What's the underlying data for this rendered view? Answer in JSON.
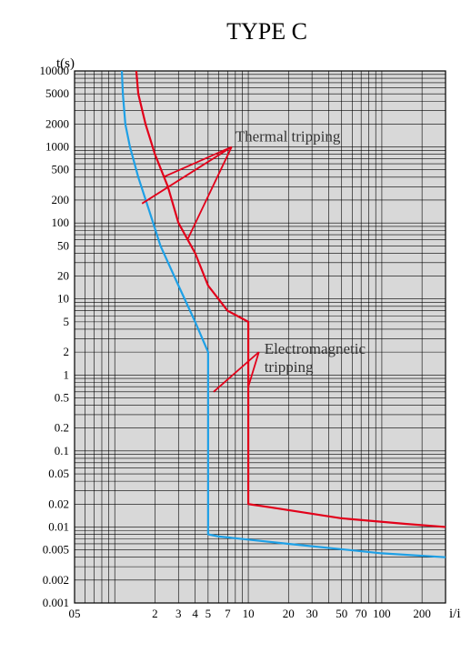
{
  "title": "TYPE C",
  "y_axis_label": "t(s)",
  "x_axis_label": "i/in",
  "annotations": {
    "thermal": "Thermal tripping",
    "electro": "Electromagnetic",
    "electro2": "tripping"
  },
  "colors": {
    "plot_bg": "#d8d8d8",
    "grid": "#000000",
    "blue_curve": "#1ea0e6",
    "red_curve": "#e2001a",
    "text": "#000000",
    "annotation": "#333333"
  },
  "x_ticks": [
    0.5,
    1,
    2,
    3,
    4,
    5,
    7,
    10,
    20,
    30,
    50,
    70,
    100,
    200
  ],
  "x_tick_labels": [
    "05",
    "",
    "2",
    "3",
    "4",
    "5",
    "7",
    "10",
    "20",
    "30",
    "50",
    "70",
    "100",
    "200"
  ],
  "y_ticks": [
    0.001,
    0.002,
    0.005,
    0.01,
    0.02,
    0.05,
    0.1,
    0.2,
    0.5,
    1,
    2,
    5,
    10,
    20,
    50,
    100,
    200,
    500,
    1000,
    2000,
    5000,
    10000
  ],
  "y_tick_labels": [
    "0.001",
    "0.002",
    "0.005",
    "0.01",
    "0.02",
    "0.05",
    "0.1",
    "0.2",
    "0.5",
    "1",
    "2",
    "5",
    "10",
    "20",
    "50",
    "100",
    "200",
    "500",
    "1000",
    "2000",
    "5000",
    "10000"
  ],
  "x_range": [
    0.5,
    300
  ],
  "y_range": [
    0.001,
    10000
  ],
  "blue_curve_points": [
    [
      1.13,
      10000
    ],
    [
      1.15,
      5000
    ],
    [
      1.2,
      2000
    ],
    [
      1.3,
      1000
    ],
    [
      1.5,
      400
    ],
    [
      1.8,
      150
    ],
    [
      2.2,
      50
    ],
    [
      3,
      15
    ],
    [
      4,
      5
    ],
    [
      5,
      2
    ],
    [
      5,
      1.3
    ],
    [
      5,
      0.008
    ],
    [
      6,
      0.0075
    ],
    [
      20,
      0.006
    ],
    [
      100,
      0.0045
    ],
    [
      300,
      0.004
    ]
  ],
  "red_curve_points": [
    [
      1.45,
      10000
    ],
    [
      1.5,
      5000
    ],
    [
      1.7,
      2000
    ],
    [
      2,
      800
    ],
    [
      2.5,
      300
    ],
    [
      3,
      100
    ],
    [
      4,
      40
    ],
    [
      5,
      15
    ],
    [
      7,
      7
    ],
    [
      10,
      5
    ],
    [
      10,
      1
    ],
    [
      10,
      0.02
    ],
    [
      15,
      0.018
    ],
    [
      50,
      0.013
    ],
    [
      150,
      0.011
    ],
    [
      300,
      0.01
    ]
  ],
  "thermal_leader_start_x": 7.5,
  "thermal_leader_start_y": 1000,
  "thermal_leader_targets": [
    [
      1.6,
      180
    ],
    [
      2.3,
      400
    ],
    [
      3.5,
      60
    ]
  ],
  "electro_leader_start_x": 12,
  "electro_leader_start_y": 2,
  "electro_leader_targets": [
    [
      5.5,
      0.6
    ],
    [
      10,
      0.7
    ]
  ],
  "font_sizes": {
    "title": 26,
    "axis_label": 15,
    "tick": 13,
    "annotation": 17
  },
  "line_width_grid": 0.6,
  "line_width_curve": 2.2
}
